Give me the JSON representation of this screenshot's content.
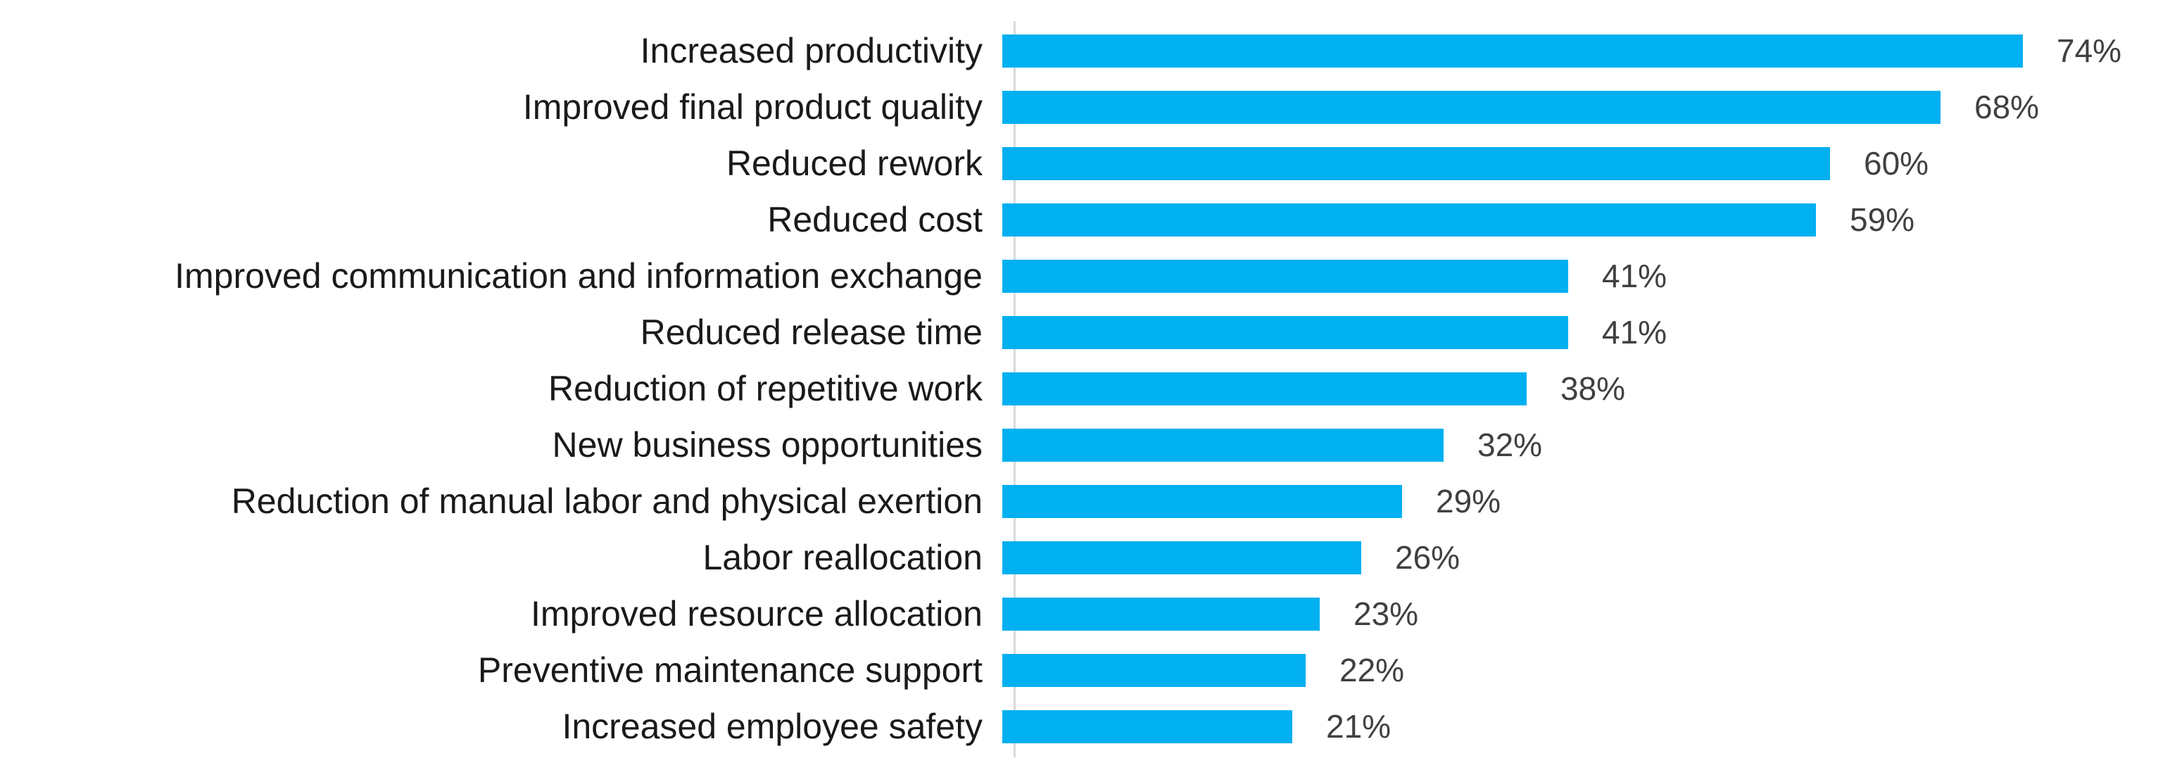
{
  "chart_data": {
    "type": "bar",
    "orientation": "horizontal",
    "title": "",
    "xlabel": "",
    "ylabel": "",
    "categories": [
      "Increased productivity",
      "Improved final product quality",
      "Reduced rework",
      "Reduced cost",
      "Improved communication and information exchange",
      "Reduced release time",
      "Reduction of repetitive work",
      "New business opportunities",
      "Reduction of manual labor and physical exertion",
      "Labor reallocation",
      "Improved resource allocation",
      "Preventive maintenance support",
      "Increased employee safety"
    ],
    "values": [
      74,
      68,
      60,
      59,
      41,
      41,
      38,
      32,
      29,
      26,
      23,
      22,
      21
    ],
    "value_suffix": "%",
    "xlim": [
      0,
      80
    ],
    "grid": false,
    "legend": false,
    "data_labels": "outside-end",
    "colors": {
      "bar": "#00B0F0",
      "value_label": "#404040",
      "category_label": "#1A1A1A",
      "axis_line": "#D9D9D9",
      "background": "#FFFFFF"
    }
  }
}
